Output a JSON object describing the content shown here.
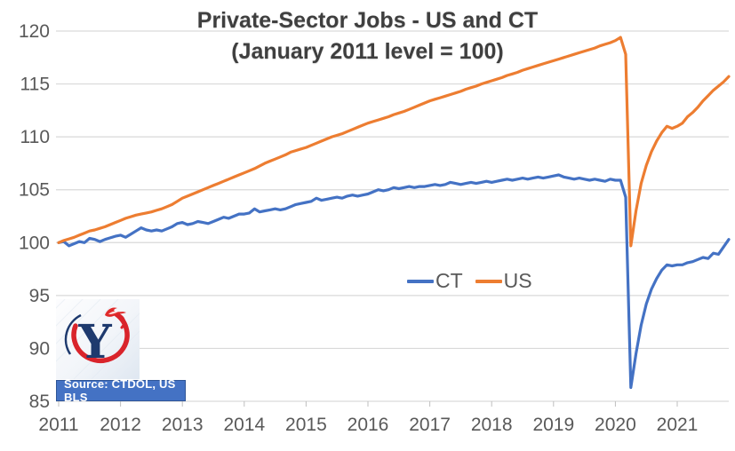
{
  "chart_data": {
    "type": "line",
    "title": "Private-Sector Jobs - US and CT",
    "subtitle": "(January 2011 level = 100)",
    "xlabel": "",
    "ylabel": "",
    "x_start": "Jan 2011",
    "x_end": "Nov 2021",
    "x_frequency": "monthly",
    "x_tick_labels": [
      "2011",
      "2012",
      "2013",
      "2014",
      "2015",
      "2016",
      "2017",
      "2018",
      "2019",
      "2020",
      "2021"
    ],
    "y_ticks": [
      85,
      90,
      95,
      100,
      105,
      110,
      115,
      120
    ],
    "ylim": [
      85,
      120
    ],
    "grid": true,
    "legend_position": "center",
    "colors": {
      "ct_line": "#4472C4",
      "us_line": "#ED7D31",
      "gridline": "#D9D9D9",
      "axis_text": "#595959",
      "title_text": "#3F3F3F"
    },
    "series": [
      {
        "name": "CT",
        "color": "#4472C4",
        "values": [
          100.0,
          100.1,
          99.7,
          99.9,
          100.1,
          100.0,
          100.4,
          100.3,
          100.1,
          100.3,
          100.45,
          100.6,
          100.7,
          100.5,
          100.8,
          101.1,
          101.4,
          101.2,
          101.1,
          101.2,
          101.1,
          101.3,
          101.5,
          101.8,
          101.9,
          101.7,
          101.8,
          102.0,
          101.9,
          101.8,
          102.0,
          102.2,
          102.4,
          102.3,
          102.5,
          102.7,
          102.7,
          102.8,
          103.2,
          102.9,
          103.0,
          103.1,
          103.2,
          103.1,
          103.2,
          103.4,
          103.6,
          103.7,
          103.8,
          103.9,
          104.2,
          104.0,
          104.1,
          104.2,
          104.3,
          104.2,
          104.4,
          104.5,
          104.4,
          104.5,
          104.6,
          104.8,
          105.0,
          104.9,
          105.0,
          105.2,
          105.1,
          105.2,
          105.3,
          105.2,
          105.3,
          105.3,
          105.4,
          105.5,
          105.4,
          105.5,
          105.7,
          105.6,
          105.5,
          105.6,
          105.7,
          105.6,
          105.7,
          105.8,
          105.7,
          105.8,
          105.9,
          106.0,
          105.9,
          106.0,
          106.1,
          106.0,
          106.1,
          106.2,
          106.1,
          106.2,
          106.3,
          106.4,
          106.2,
          106.1,
          106.0,
          106.1,
          106.0,
          105.9,
          106.0,
          105.9,
          105.8,
          106.0,
          105.9,
          105.9,
          104.3,
          86.3,
          89.5,
          92.2,
          94.2,
          95.6,
          96.6,
          97.4,
          97.9,
          97.8,
          97.9,
          97.9,
          98.1,
          98.2,
          98.4,
          98.6,
          98.5,
          99.0,
          98.9,
          99.6,
          100.3
        ]
      },
      {
        "name": "US",
        "color": "#ED7D31",
        "values": [
          100.0,
          100.2,
          100.35,
          100.5,
          100.7,
          100.9,
          101.1,
          101.2,
          101.35,
          101.5,
          101.7,
          101.9,
          102.1,
          102.3,
          102.45,
          102.6,
          102.7,
          102.8,
          102.9,
          103.05,
          103.2,
          103.4,
          103.6,
          103.9,
          104.2,
          104.4,
          104.6,
          104.8,
          105.0,
          105.2,
          105.4,
          105.6,
          105.8,
          106.0,
          106.2,
          106.4,
          106.6,
          106.8,
          107.0,
          107.25,
          107.5,
          107.7,
          107.9,
          108.1,
          108.3,
          108.55,
          108.7,
          108.85,
          109.0,
          109.2,
          109.4,
          109.6,
          109.8,
          110.0,
          110.15,
          110.3,
          110.5,
          110.7,
          110.9,
          111.1,
          111.3,
          111.45,
          111.6,
          111.75,
          111.9,
          112.1,
          112.25,
          112.4,
          112.6,
          112.8,
          113.0,
          113.2,
          113.4,
          113.55,
          113.7,
          113.85,
          114.0,
          114.15,
          114.3,
          114.5,
          114.65,
          114.8,
          115.0,
          115.15,
          115.3,
          115.45,
          115.6,
          115.8,
          115.95,
          116.1,
          116.3,
          116.45,
          116.6,
          116.75,
          116.9,
          117.05,
          117.2,
          117.35,
          117.5,
          117.65,
          117.8,
          117.95,
          118.1,
          118.25,
          118.4,
          118.6,
          118.75,
          118.9,
          119.1,
          119.4,
          117.8,
          99.7,
          103.0,
          105.6,
          107.3,
          108.6,
          109.6,
          110.4,
          111.0,
          110.8,
          111.0,
          111.3,
          111.9,
          112.3,
          112.8,
          113.4,
          113.9,
          114.4,
          114.8,
          115.2,
          115.7
        ]
      }
    ]
  },
  "header": {
    "title": "Private-Sector Jobs - US and CT",
    "subtitle": "(January 2011 level = 100)"
  },
  "legend": {
    "items": [
      {
        "label": "CT",
        "color": "#4472C4"
      },
      {
        "label": "US",
        "color": "#ED7D31"
      }
    ]
  },
  "source": {
    "label": "Source: CTDOL, US BLS",
    "badge_color": "#4472C4"
  },
  "logo": {
    "letter": "Y",
    "navy": "#1E3A6E",
    "red": "#D9242B"
  }
}
